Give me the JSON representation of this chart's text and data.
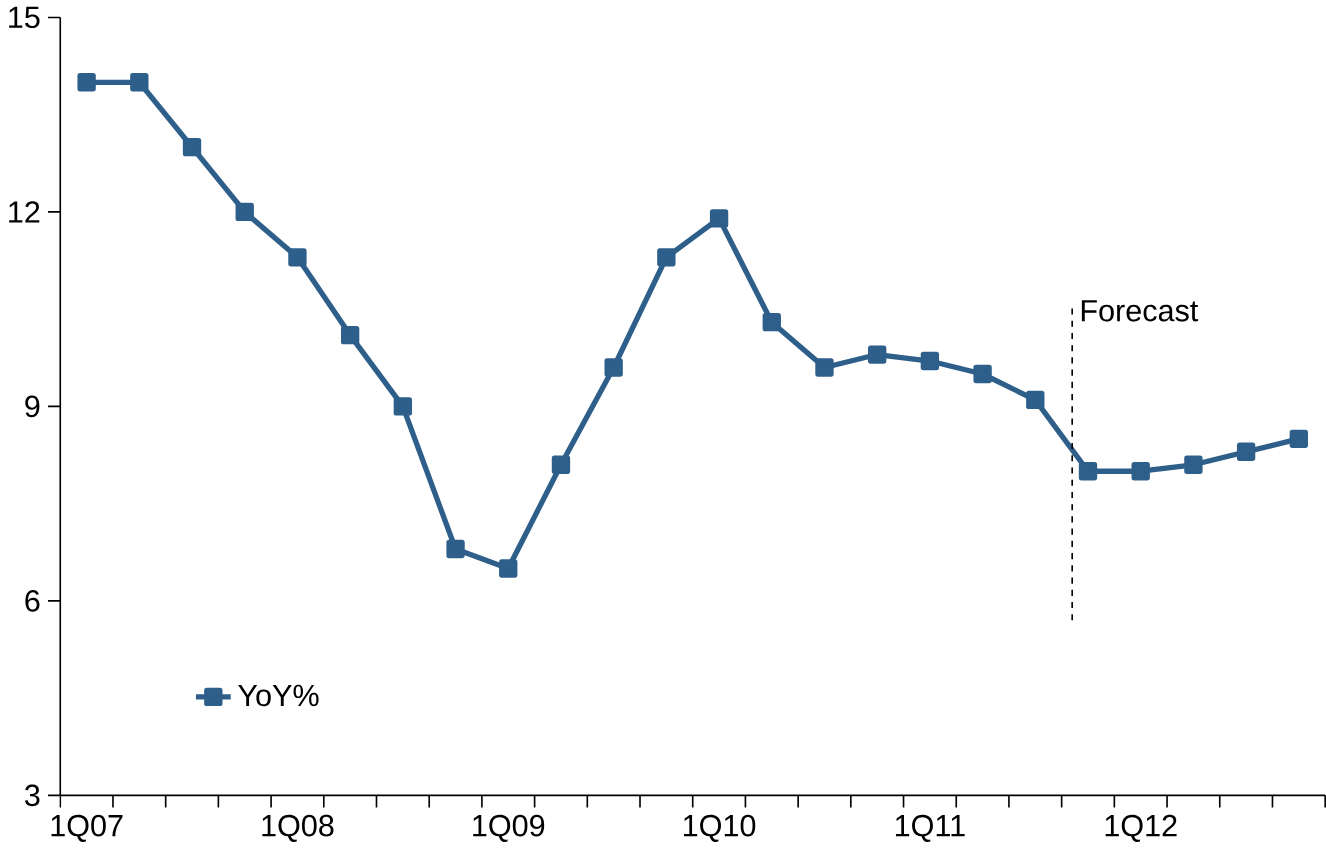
{
  "chart_data": {
    "type": "line",
    "categories": [
      "1Q07",
      null,
      null,
      null,
      "1Q08",
      null,
      null,
      null,
      "1Q09",
      null,
      null,
      null,
      "1Q10",
      null,
      null,
      null,
      "1Q11",
      null,
      null,
      null,
      "1Q12",
      null,
      null,
      null
    ],
    "series": [
      {
        "name": "YoY%",
        "color": "#2e5f8a",
        "values": [
          14,
          14,
          13,
          12,
          11.3,
          10.1,
          9.0,
          6.8,
          6.5,
          8.1,
          9.6,
          11.3,
          11.9,
          10.3,
          9.6,
          9.8,
          9.7,
          9.5,
          9.1,
          8.0,
          8.0,
          8.1,
          8.3,
          8.5
        ]
      }
    ],
    "ylim": [
      3,
      15
    ],
    "yticks": [
      3,
      6,
      9,
      12,
      15
    ],
    "annotations": [
      "Forecast"
    ],
    "legend": "bottom left",
    "marker": "square",
    "line_style": "solid",
    "grid": false
  }
}
